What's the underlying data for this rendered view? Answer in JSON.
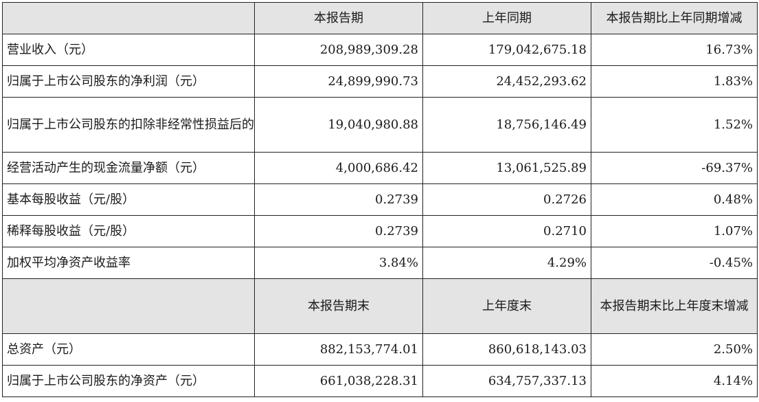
{
  "section1": {
    "headers": [
      "",
      "本报告期",
      "上年同期",
      "本报告期比上年同期增减"
    ],
    "rows": [
      [
        "营业收入（元）",
        "208,989,309.28",
        "179,042,675.18",
        "16.73%"
      ],
      [
        "归属于上市公司股东的净利润（元）",
        "24,899,990.73",
        "24,452,293.62",
        "1.83%"
      ],
      [
        "归属于上市公司股东的扣除非经常性损益后的净利润（元）",
        "19,040,980.88",
        "18,756,146.49",
        "1.52%"
      ],
      [
        "经营活动产生的现金流量净额（元）",
        "4,000,686.42",
        "13,061,525.89",
        "-69.37%"
      ],
      [
        "基本每股收益（元/股）",
        "0.2739",
        "0.2726",
        "0.48%"
      ],
      [
        "稀释每股收益（元/股）",
        "0.2739",
        "0.2710",
        "1.07%"
      ],
      [
        "加权平均净资产收益率",
        "3.84%",
        "4.29%",
        "-0.45%"
      ]
    ]
  },
  "section2": {
    "headers": [
      "",
      "本报告期末",
      "上年度末",
      "本报告期末比上年度末增减"
    ],
    "rows": [
      [
        "总资产（元）",
        "882,153,774.01",
        "860,618,143.03",
        "2.50%"
      ],
      [
        "归属于上市公司股东的净资产（元）",
        "661,038,228.31",
        "634,757,337.13",
        "4.14%"
      ]
    ]
  }
}
